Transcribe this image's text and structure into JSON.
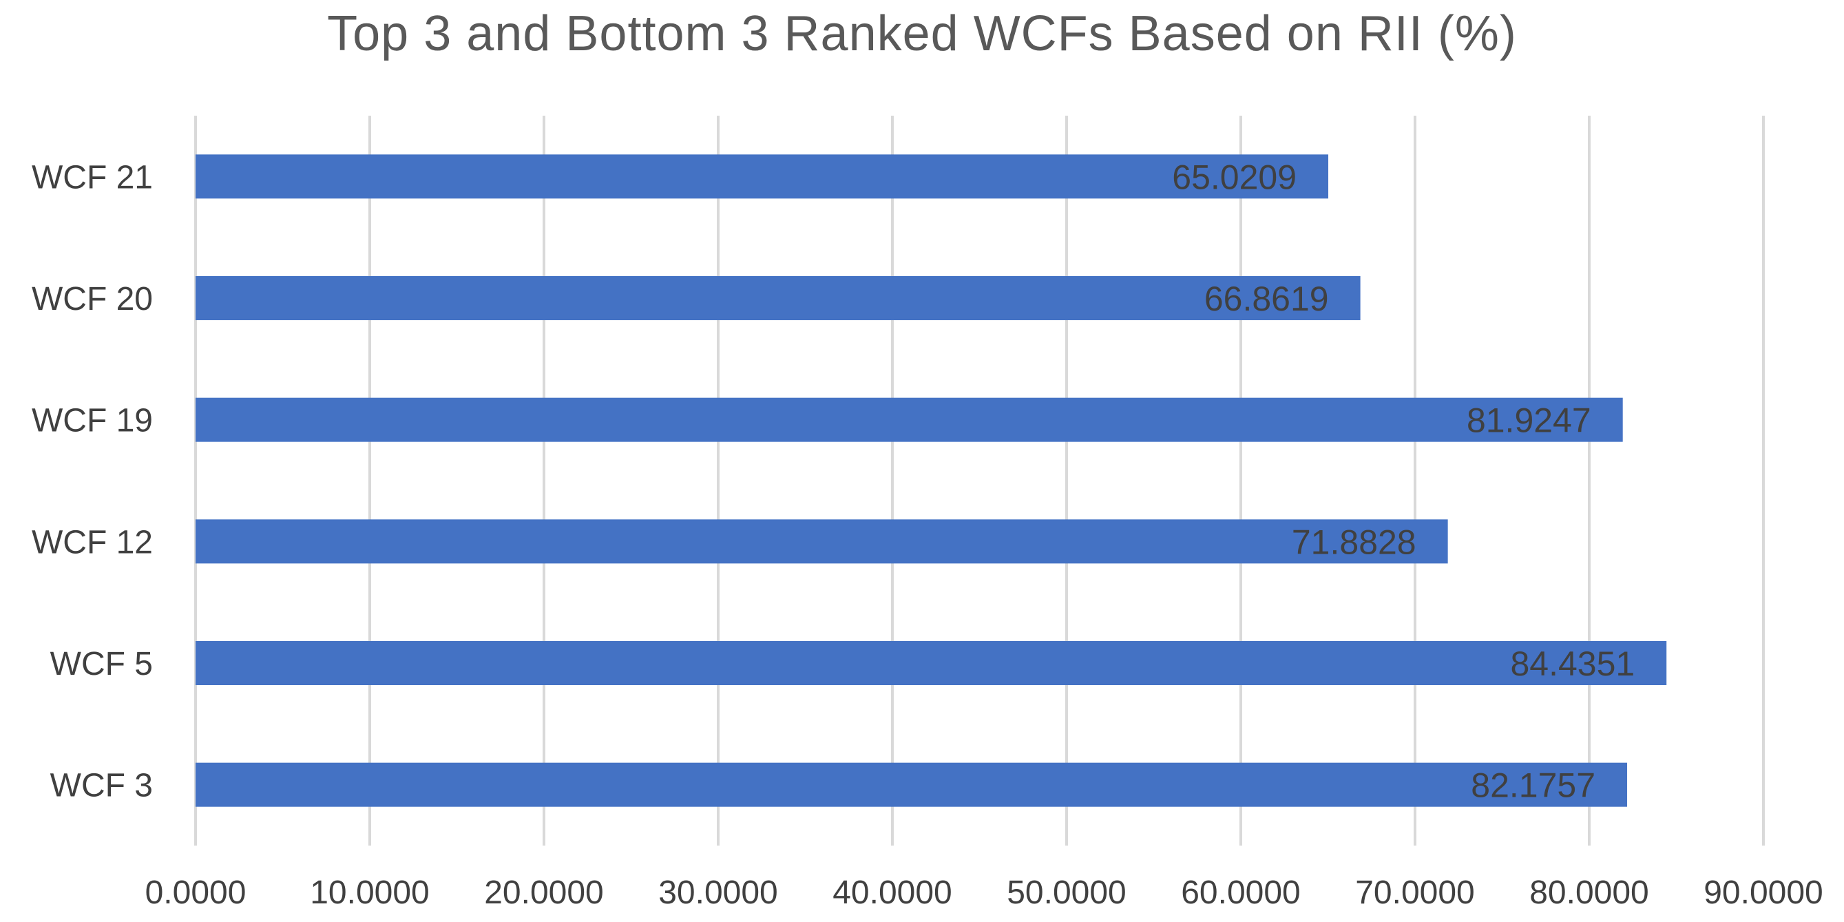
{
  "chart_data": {
    "type": "bar",
    "orientation": "horizontal",
    "title": "Top 3 and Bottom 3 Ranked WCFs Based on RII (%)",
    "xlabel": "",
    "ylabel": "",
    "categories": [
      "WCF 21",
      "WCF 20",
      "WCF 19",
      "WCF 12",
      "WCF 5",
      "WCF 3"
    ],
    "values": [
      65.0209,
      66.8619,
      81.9247,
      71.8828,
      84.4351,
      82.1757
    ],
    "value_labels": [
      "65.0209",
      "66.8619",
      "81.9247",
      "71.8828",
      "84.4351",
      "82.1757"
    ],
    "xlim": [
      0,
      90
    ],
    "x_ticks": [
      0,
      10,
      20,
      30,
      40,
      50,
      60,
      70,
      80,
      90
    ],
    "x_tick_labels": [
      "0.0000",
      "10.0000",
      "20.0000",
      "30.0000",
      "40.0000",
      "50.0000",
      "60.0000",
      "70.0000",
      "80.0000",
      "90.0000"
    ],
    "grid": "vertical",
    "legend": "none",
    "colors": {
      "bar": "#4472C4",
      "gridline": "#D9D9D9",
      "title": "#595959",
      "label": "#404040",
      "value_label": "#404040"
    }
  }
}
